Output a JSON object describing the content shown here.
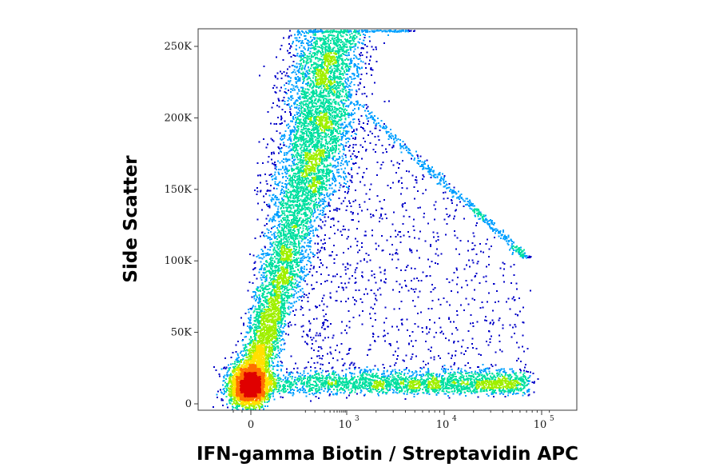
{
  "chart_data": {
    "type": "scatter",
    "subtype": "flow-cytometry density dot plot",
    "title": "",
    "xlabel": "IFN-gamma Biotin / Streptavidin APC",
    "ylabel": "Side Scatter",
    "x_scale": "biexponential",
    "x_range": [
      -150,
      160000
    ],
    "y_range": [
      0,
      262144
    ],
    "y_ticks": [
      {
        "value": 0,
        "label": "0"
      },
      {
        "value": 50000,
        "label": "50K"
      },
      {
        "value": 100000,
        "label": "100K"
      },
      {
        "value": 150000,
        "label": "150K"
      },
      {
        "value": 200000,
        "label": "200K"
      },
      {
        "value": 250000,
        "label": "250K"
      }
    ],
    "x_ticks": [
      {
        "value": 0,
        "label": "0",
        "sup": ""
      },
      {
        "value": 1000,
        "label": "10",
        "sup": "3"
      },
      {
        "value": 10000,
        "label": "10",
        "sup": "4"
      },
      {
        "value": 100000,
        "label": "10",
        "sup": "5"
      }
    ],
    "grid": false,
    "legend": "none",
    "color_map": [
      "#0000c8",
      "#00a0ff",
      "#00e0a0",
      "#a0f000",
      "#ffe000",
      "#ff7000",
      "#e00000"
    ],
    "populations": [
      {
        "name": "negative dense core",
        "x_center": 20,
        "y_center": 16000,
        "x_spread": 60,
        "y_spread": 6000,
        "weight": 0.22
      },
      {
        "name": "main diagonal stream",
        "x_from": 30,
        "x_to": 700,
        "y_from": 12000,
        "y_to": 250000,
        "weight": 0.5
      },
      {
        "name": "low-SSC positive tail",
        "x_from": 200,
        "x_to": 60000,
        "y_center": 17000,
        "weight": 0.13
      },
      {
        "name": "sparse positive scatter",
        "x_from": 400,
        "x_to": 50000,
        "y_from": 5000,
        "y_to": 230000,
        "weight": 0.15
      }
    ]
  }
}
